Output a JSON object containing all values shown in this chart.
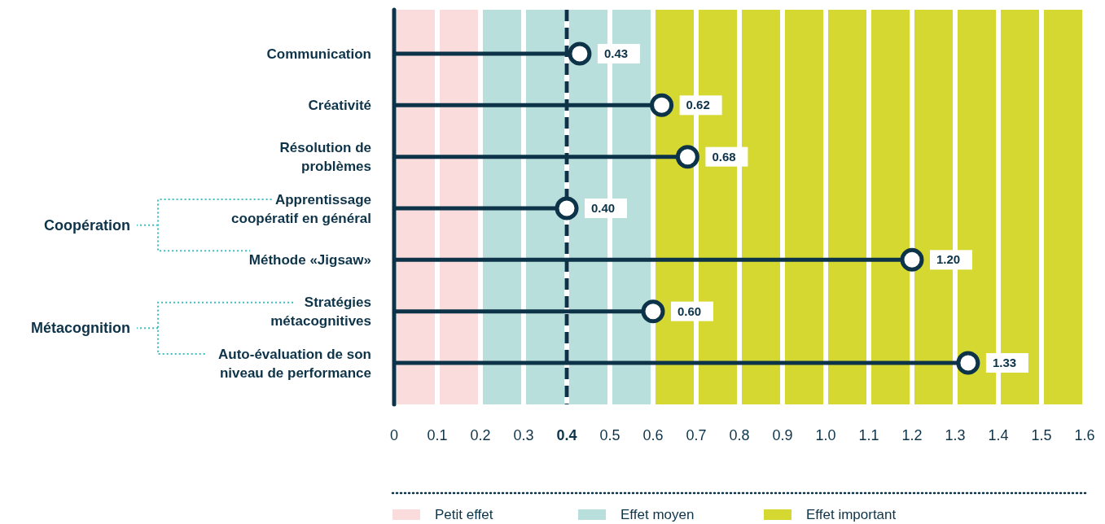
{
  "chart_data": {
    "type": "lollipop",
    "orientation": "horizontal",
    "categories": [
      "Communication",
      "Créativité",
      "Résolution de problèmes",
      "Apprentissage coopératif en général",
      "Méthode «Jigsaw»",
      "Stratégies métacognitives",
      "Auto-évaluation de son niveau de performance"
    ],
    "values": [
      0.43,
      0.62,
      0.68,
      0.4,
      1.2,
      0.6,
      1.33
    ],
    "value_labels": [
      "0.43",
      "0.62",
      "0.68",
      "0.40",
      "1.20",
      "0.60",
      "1.33"
    ],
    "color": "#0d3349",
    "marker": "circle",
    "xlim": [
      0,
      1.6
    ],
    "xticks": [
      0,
      0.1,
      0.2,
      0.3,
      0.4,
      0.5,
      0.6,
      0.7,
      0.8,
      0.9,
      {
        "value": 1,
        "label": "1.0"
      },
      1.1,
      1.2,
      1.3,
      1.4,
      1.5,
      1.6
    ],
    "grid": "x",
    "ref_lines": [
      {
        "axis": "x",
        "value": 0.4,
        "line_style": "dashed",
        "color": "#0d3349"
      }
    ],
    "bands": [
      {
        "axis": "x",
        "from": 0,
        "to": 0.2,
        "label": "Petit effet",
        "color": "#fbdcdc"
      },
      {
        "axis": "x",
        "from": 0.2,
        "to": 0.6,
        "label": "Effet moyen",
        "color": "#b8dfdb"
      },
      {
        "axis": "x",
        "from": 0.6,
        "to": 1.6,
        "label": "Effet important",
        "color": "#d6d832"
      }
    ],
    "legend": "bottom",
    "annotations": [
      "Coopération",
      "Métacognition"
    ]
  }
}
